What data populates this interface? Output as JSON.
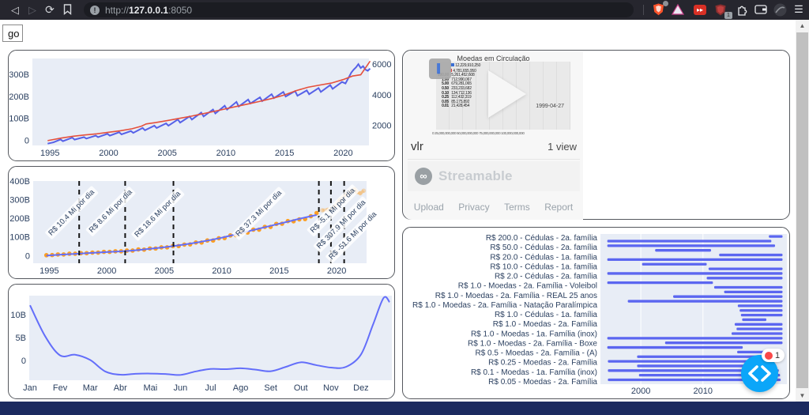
{
  "browser": {
    "url": {
      "scheme": "http://",
      "host": "127.0.0.1",
      "port": ":8050",
      "info": "!"
    },
    "extensions": {
      "shield_badge": "1",
      "red_icon_glyph": "▸▸",
      "menu_glyph": "☰"
    },
    "nav": {
      "back": "◁",
      "forward": "▷",
      "reload": "⟳"
    }
  },
  "page": {
    "go_button": "go"
  },
  "video_card": {
    "title": "Moedas em Circulação",
    "date_label": "1999-04-27",
    "name": "vlr",
    "views": "1 view",
    "brand": "Streamable",
    "brand_glyph": "∞",
    "links": [
      "Upload",
      "Privacy",
      "Terms",
      "Report"
    ],
    "thumb_rows": [
      [
        "",
        "12,229,910,250"
      ],
      [
        "",
        "4,781,655,950"
      ],
      [
        "100.00",
        "5,261,452,608"
      ],
      [
        "1.00",
        "712,990,067"
      ],
      [
        "5.00",
        "679,281,065"
      ],
      [
        "0.50",
        "233,233,682"
      ],
      [
        "0.10",
        "134,712,136"
      ],
      [
        "0.25",
        "112,432,319"
      ],
      [
        "0.05",
        "85,175,892"
      ],
      [
        "0.01",
        "21,428,454"
      ]
    ],
    "thumb_axis": "0   25,000,000,000   50,000,000,000   75,000,000,000   100,000,000,000",
    "avatar_glyph": "▌"
  },
  "debug": {
    "error_count": "1"
  },
  "colors": {
    "plot_bg": "#e8edf6",
    "blue_line": "#5661e8",
    "red_line": "#e5503c",
    "orange": "#fb9e23",
    "trend": "#636efa",
    "bar_blue": "#5b66f0",
    "tick": "#2a3f5f",
    "vline": "#141414",
    "debug_blue": "#0ba6f9",
    "navy": "#1b2a5f"
  },
  "chart_data": [
    {
      "type": "line",
      "title": "",
      "x_ticks": [
        1995,
        2000,
        2005,
        2010,
        2015,
        2020
      ],
      "xlim": [
        1993.5,
        2022.2
      ],
      "ylim_left": [
        -20,
        376
      ],
      "yticks_left": {
        "values": [
          0,
          100,
          200,
          300
        ],
        "labels": [
          "0",
          "100B",
          "200B",
          "300B"
        ]
      },
      "ylim_right": [
        750,
        6420
      ],
      "yticks_right": {
        "values": [
          2000,
          4000,
          6000
        ],
        "labels": [
          "2000",
          "4000",
          "6000"
        ]
      },
      "series": [
        {
          "name": "red-smooth-left-axis",
          "axis": "left",
          "points": [
            [
              1994.8,
              2
            ],
            [
              1996,
              14
            ],
            [
              1997,
              22
            ],
            [
              1998,
              28
            ],
            [
              1999,
              33
            ],
            [
              2000,
              40
            ],
            [
              2001,
              47
            ],
            [
              2002,
              56
            ],
            [
              2002.8,
              68
            ],
            [
              2003.2,
              78
            ],
            [
              2004,
              84
            ],
            [
              2005,
              93
            ],
            [
              2006,
              103
            ],
            [
              2007,
              113
            ],
            [
              2008,
              124
            ],
            [
              2009,
              135
            ],
            [
              2010,
              147
            ],
            [
              2011,
              159
            ],
            [
              2012,
              170
            ],
            [
              2013,
              182
            ],
            [
              2014,
              195
            ],
            [
              2015,
              210
            ],
            [
              2016,
              230
            ],
            [
              2017,
              245
            ],
            [
              2018,
              255
            ],
            [
              2019,
              264
            ],
            [
              2020,
              280
            ],
            [
              2020.8,
              296
            ],
            [
              2021.5,
              302
            ],
            [
              2022.3,
              364
            ]
          ]
        },
        {
          "name": "blue-noisy-right-axis",
          "axis": "right",
          "points": [
            [
              1994.8,
              870
            ],
            [
              1995.3,
              950
            ],
            [
              1995.9,
              1140
            ],
            [
              1996.1,
              1030
            ],
            [
              1996.9,
              1260
            ],
            [
              1997.1,
              1130
            ],
            [
              1997.9,
              1290
            ],
            [
              1998.1,
              1200
            ],
            [
              1998.9,
              1390
            ],
            [
              1999.1,
              1290
            ],
            [
              1999.9,
              1510
            ],
            [
              2000.1,
              1390
            ],
            [
              2000.9,
              1610
            ],
            [
              2001.1,
              1470
            ],
            [
              2001.9,
              1690
            ],
            [
              2002.1,
              1570
            ],
            [
              2002.9,
              1890
            ],
            [
              2003.1,
              1740
            ],
            [
              2003.9,
              2040
            ],
            [
              2004.1,
              1890
            ],
            [
              2004.9,
              2190
            ],
            [
              2005.1,
              2040
            ],
            [
              2005.9,
              2440
            ],
            [
              2006.1,
              2240
            ],
            [
              2006.9,
              2640
            ],
            [
              2007.1,
              2440
            ],
            [
              2007.9,
              2890
            ],
            [
              2008.1,
              2640
            ],
            [
              2008.9,
              3090
            ],
            [
              2009.1,
              2840
            ],
            [
              2009.9,
              3340
            ],
            [
              2010.1,
              3090
            ],
            [
              2010.9,
              3590
            ],
            [
              2011.1,
              3290
            ],
            [
              2011.9,
              3740
            ],
            [
              2012.1,
              3490
            ],
            [
              2012.9,
              3890
            ],
            [
              2013.1,
              3640
            ],
            [
              2013.9,
              4090
            ],
            [
              2014.1,
              3840
            ],
            [
              2014.9,
              4240
            ],
            [
              2015.1,
              3940
            ],
            [
              2015.9,
              4290
            ],
            [
              2016.1,
              3990
            ],
            [
              2016.9,
              4340
            ],
            [
              2017.1,
              4090
            ],
            [
              2017.9,
              4490
            ],
            [
              2018.1,
              4240
            ],
            [
              2018.9,
              4690
            ],
            [
              2019.1,
              4440
            ],
            [
              2019.9,
              4890
            ],
            [
              2020.2,
              4790
            ],
            [
              2020.7,
              5500
            ],
            [
              2020.9,
              5700
            ],
            [
              2021.1,
              5850
            ],
            [
              2021.3,
              6050
            ],
            [
              2021.5,
              5800
            ],
            [
              2021.7,
              5920
            ],
            [
              2021.9,
              5700
            ],
            [
              2022.1,
              5620
            ],
            [
              2022.3,
              5760
            ]
          ]
        }
      ]
    },
    {
      "type": "scatter",
      "title": "",
      "x_ticks": [
        1995,
        2000,
        2005,
        2010,
        2015,
        2020
      ],
      "xlim": [
        1993.6,
        2022.6
      ],
      "ylim": [
        -37,
        404
      ],
      "yticks": {
        "values": [
          0,
          100,
          200,
          300,
          400
        ],
        "labels": [
          "0",
          "100B",
          "200B",
          "300B",
          "400B"
        ]
      },
      "vlines_years": [
        1997.6,
        2001.6,
        2005.8,
        2018.45,
        2019.5,
        2020.65
      ],
      "annotations": [
        {
          "text": "R$ 10.4 Mi por dia",
          "x": 107,
          "y": 24
        },
        {
          "text": "R$ 8.6 Mi por dia",
          "x": 154,
          "y": 24
        },
        {
          "text": "R$ 18.6 Mi por dia",
          "x": 216,
          "y": 26
        },
        {
          "text": "R$ 37.3 Mi por dia",
          "x": 344,
          "y": 25
        },
        {
          "text": "R$ -5.1 Mi por dia",
          "x": 437,
          "y": 22
        },
        {
          "text": "R$ 307.9 Mi por dia",
          "x": 450,
          "y": 37
        },
        {
          "text": "R$ -51.6 Mi por dia",
          "x": 464,
          "y": 52
        }
      ],
      "markers_solid": [
        [
          1994.75,
          6
        ],
        [
          1995.25,
          7
        ],
        [
          1995.75,
          10
        ],
        [
          1996.25,
          10
        ],
        [
          1996.75,
          14
        ],
        [
          1997.25,
          14
        ],
        [
          1997.75,
          17
        ],
        [
          1998.25,
          17
        ],
        [
          1998.75,
          20
        ],
        [
          1999.25,
          20
        ],
        [
          1999.75,
          24
        ],
        [
          2000.25,
          24
        ],
        [
          2000.75,
          27
        ],
        [
          2001.25,
          27
        ],
        [
          2001.75,
          31
        ],
        [
          2002.25,
          31
        ],
        [
          2002.75,
          37
        ],
        [
          2003.25,
          36
        ],
        [
          2003.75,
          42
        ],
        [
          2004.25,
          42
        ],
        [
          2004.75,
          48
        ],
        [
          2005.25,
          48
        ],
        [
          2005.75,
          55
        ],
        [
          2006.25,
          55
        ],
        [
          2006.75,
          63
        ],
        [
          2007.25,
          64
        ],
        [
          2007.75,
          74
        ],
        [
          2008.25,
          74
        ],
        [
          2008.75,
          85
        ],
        [
          2009.25,
          85
        ],
        [
          2009.75,
          97
        ],
        [
          2010.25,
          98
        ],
        [
          2010.75,
          112
        ],
        [
          2011.25,
          113
        ],
        [
          2011.75,
          128
        ],
        [
          2012.25,
          128
        ],
        [
          2012.75,
          143
        ],
        [
          2013.25,
          143
        ],
        [
          2013.75,
          158
        ],
        [
          2014.25,
          158
        ],
        [
          2014.75,
          174
        ],
        [
          2015.25,
          175
        ],
        [
          2015.75,
          189
        ],
        [
          2016.25,
          188
        ],
        [
          2016.75,
          198
        ],
        [
          2017.25,
          200
        ],
        [
          2017.75,
          215
        ],
        [
          2018.25,
          232
        ]
      ],
      "markers_faded": [
        [
          2018.75,
          247
        ],
        [
          2019.25,
          250
        ],
        [
          2019.75,
          262
        ],
        [
          2020.25,
          300
        ],
        [
          2020.75,
          330
        ],
        [
          2021.25,
          350
        ],
        [
          2021.55,
          360
        ],
        [
          2021.75,
          345
        ],
        [
          2022.05,
          338
        ],
        [
          2022.35,
          352
        ]
      ],
      "trend": [
        [
          1994.75,
          4
        ],
        [
          1996,
          9
        ],
        [
          1998,
          16
        ],
        [
          2000,
          23
        ],
        [
          2002,
          30
        ],
        [
          2004,
          42
        ],
        [
          2006,
          57
        ],
        [
          2008,
          76
        ],
        [
          2010,
          100
        ],
        [
          2012,
          130
        ],
        [
          2014,
          160
        ],
        [
          2016,
          190
        ],
        [
          2017,
          205
        ],
        [
          2018.25,
          222
        ]
      ]
    },
    {
      "type": "line",
      "title": "",
      "x_tick_labels": [
        "Jan",
        "Fev",
        "Mar",
        "Abr",
        "Mai",
        "Jun",
        "Jul",
        "Ago",
        "Set",
        "Out",
        "Nov",
        "Dez"
      ],
      "xlim": [
        0,
        12
      ],
      "ylim": [
        -4.1,
        14.3
      ],
      "yticks": {
        "values": [
          0,
          5,
          10
        ],
        "labels": [
          "0",
          "5B",
          "10B"
        ]
      },
      "points": [
        [
          0,
          12.2
        ],
        [
          0.5,
          5.5
        ],
        [
          1,
          1.3
        ],
        [
          1.5,
          1.45
        ],
        [
          2,
          0.3
        ],
        [
          2.5,
          -2.2
        ],
        [
          3,
          -2.9
        ],
        [
          3.5,
          -2.7
        ],
        [
          4,
          -2.65
        ],
        [
          4.5,
          -2.75
        ],
        [
          5,
          -2.95
        ],
        [
          5.5,
          -2.2
        ],
        [
          6,
          -1.65
        ],
        [
          6.5,
          -1.7
        ],
        [
          7,
          -1.5
        ],
        [
          7.5,
          -1.8
        ],
        [
          8,
          -2.15
        ],
        [
          8.5,
          -1.2
        ],
        [
          9,
          -0.2
        ],
        [
          9.5,
          -0.8
        ],
        [
          10,
          -1.35
        ],
        [
          10.5,
          -1.2
        ],
        [
          11,
          1.5
        ],
        [
          11.4,
          8
        ],
        [
          11.75,
          13.8
        ],
        [
          11.95,
          12.9
        ]
      ]
    },
    {
      "type": "timeline",
      "title": "",
      "categories": [
        "R$ 200.0 - Cédulas - 2a. família",
        "R$ 50.0 - Cédulas - 2a. família",
        "R$ 20.0 - Cédulas - 1a. família",
        "R$ 10.0 - Cédulas - 1a. família",
        "R$ 2.0 - Cédulas - 2a. família",
        "R$ 1.0 - Moedas - 2a. Família - Voleibol",
        "R$ 1.0 - Moedas - 2a. Família - REAL 25 anos",
        "R$ 1.0 - Moedas - 2a. Família - Natação Paralímpica",
        "R$ 1.0 - Cédulas - 1a. família",
        "R$ 1.0 - Moedas - 2a. Família",
        "R$ 1.0 - Moedas - 1a. Família (inox)",
        "R$ 1.0 - Moedas - 2a. Família - Boxe",
        "R$ 0.5 - Moedas - 2a. Família - (A)",
        "R$ 0.25 - Moedas - 2a. Família",
        "R$ 0.1 - Moedas - 1a. Família (inox)",
        "R$ 0.05 - Moedas - 2a. Família"
      ],
      "x_ticks": [
        2000,
        2010
      ],
      "xlim": [
        1993.5,
        2023.5
      ],
      "bars": [
        [
          2020.6,
          2022.8
        ],
        [
          1994.6,
          2021.0
        ],
        [
          1994.6,
          2021.6
        ],
        [
          2002.3,
          2011.3
        ],
        [
          2012.6,
          2022.8
        ],
        [
          1994.6,
          2022.8
        ],
        [
          2000.2,
          2010.6
        ],
        [
          2010.9,
          2022.8
        ],
        [
          1994.6,
          2022.8
        ],
        [
          2010.6,
          2022.8
        ],
        [
          1994.6,
          2011.6
        ],
        [
          2011.8,
          2022.8
        ],
        [
          2013.4,
          2022.8
        ],
        [
          2005.2,
          2022.8
        ],
        [
          1997.9,
          2022.8
        ],
        [
          2015.6,
          2022.8
        ],
        [
          2015.9,
          2022.8
        ],
        [
          2016.1,
          2022.8
        ],
        [
          2016.3,
          2020.2
        ],
        [
          2015.1,
          2022.8
        ],
        [
          2015.4,
          2022.8
        ],
        [
          2014.6,
          2022.8
        ],
        [
          1994.6,
          2022.8
        ],
        [
          2003.9,
          2022.8
        ],
        [
          1994.6,
          2016.4
        ],
        [
          2015.5,
          2022.8
        ],
        [
          1999.4,
          2021.4
        ],
        [
          1994.7,
          2021.4
        ],
        [
          1999.4,
          2021.8
        ],
        [
          1994.7,
          2022.2
        ],
        [
          1999.7,
          2022.4
        ],
        [
          1994.7,
          2022.5
        ]
      ]
    }
  ]
}
